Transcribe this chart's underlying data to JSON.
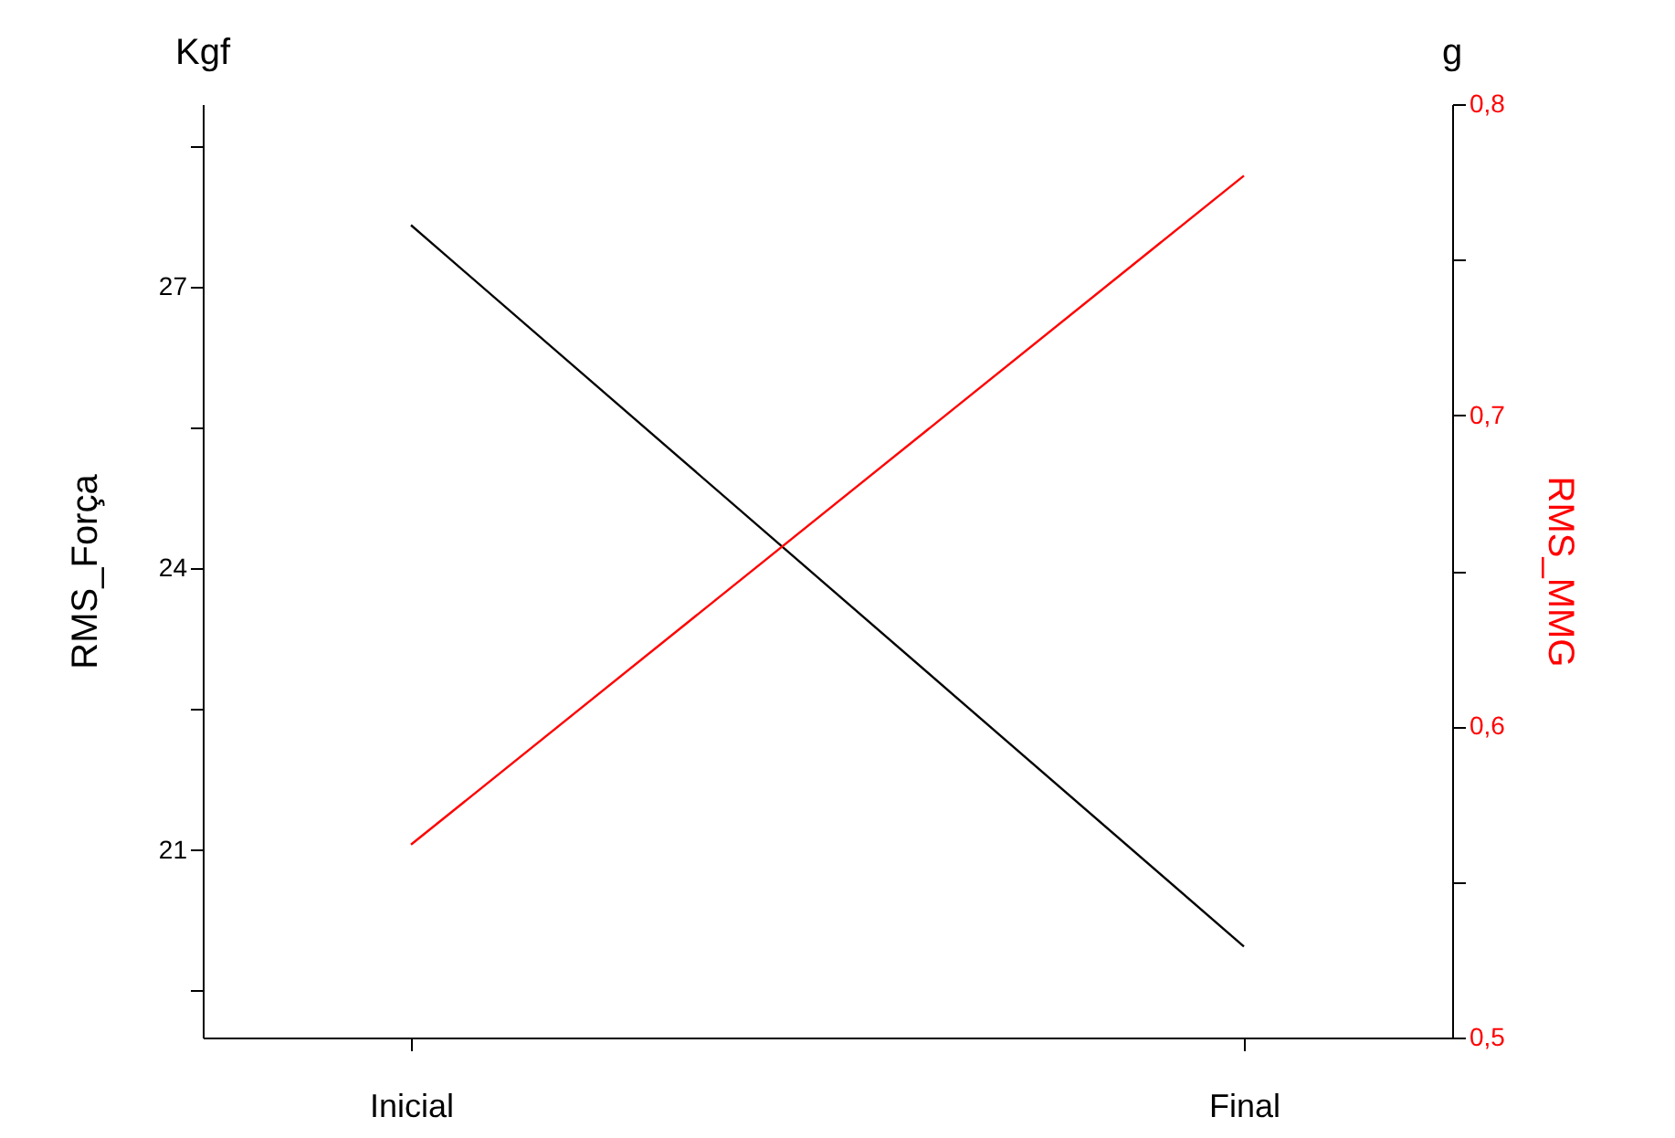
{
  "chart_data": {
    "type": "line",
    "categories": [
      "Inicial",
      "Final"
    ],
    "ylabel": "RMS_Força",
    "y2label": "RMS_MMG",
    "annotations": [
      "Kgf",
      "g"
    ],
    "ylim": [
      19.0,
      28.95
    ],
    "yticks": [
      {
        "value": 19.5,
        "label": null
      },
      21,
      {
        "value": 22.5,
        "label": null
      },
      24,
      {
        "value": 25.5,
        "label": null
      },
      27,
      {
        "value": 28.5,
        "label": null
      }
    ],
    "y2lim": [
      0.5,
      0.8
    ],
    "y2ticks": [
      {
        "value": 0.5,
        "label": "0,5"
      },
      {
        "value": 0.55,
        "label": null
      },
      {
        "value": 0.6,
        "label": "0,6"
      },
      {
        "value": 0.65,
        "label": null
      },
      {
        "value": 0.7,
        "label": "0,7"
      },
      {
        "value": 0.75,
        "label": null
      },
      {
        "value": 0.8,
        "label": "0,8"
      }
    ],
    "series": [
      {
        "color": "#000000",
        "values": [
          27.66,
          19.97
        ]
      },
      {
        "color": "#ff0000",
        "values": [
          0.562,
          0.777
        ],
        "axis": "y2"
      }
    ],
    "grid": false,
    "line_style": "solid"
  }
}
